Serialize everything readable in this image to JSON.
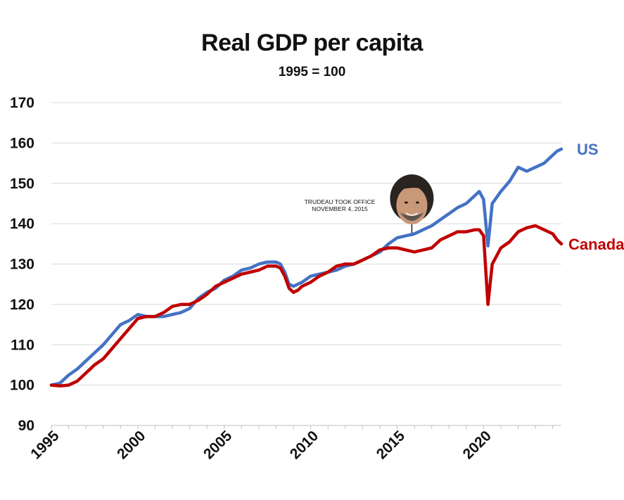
{
  "chart_data": {
    "type": "line",
    "title": "Real GDP per capita",
    "subtitle": "1995 = 100",
    "ylim": [
      90,
      170
    ],
    "yticks": [
      90,
      100,
      110,
      120,
      130,
      140,
      150,
      160,
      170
    ],
    "xlim": [
      1995,
      2024.5
    ],
    "xticks": [
      "1995",
      "2000",
      "2005",
      "2010",
      "2015",
      "2020"
    ],
    "grid": true,
    "series": [
      {
        "name": "US",
        "color": "#4472C4",
        "x": [
          1995,
          1995.5,
          1996,
          1996.5,
          1997,
          1997.5,
          1998,
          1998.5,
          1999,
          1999.5,
          2000,
          2000.5,
          2001,
          2001.5,
          2002,
          2002.5,
          2003,
          2003.5,
          2004,
          2004.5,
          2005,
          2005.5,
          2006,
          2006.5,
          2007,
          2007.5,
          2008,
          2008.25,
          2008.5,
          2008.75,
          2009,
          2009.25,
          2009.5,
          2010,
          2010.5,
          2011,
          2011.5,
          2012,
          2012.5,
          2013,
          2013.5,
          2014,
          2014.5,
          2015,
          2015.5,
          2016,
          2016.5,
          2017,
          2017.5,
          2018,
          2018.5,
          2019,
          2019.5,
          2019.75,
          2020,
          2020.25,
          2020.5,
          2021,
          2021.5,
          2022,
          2022.5,
          2023,
          2023.5,
          2024,
          2024.25,
          2024.5
        ],
        "values": [
          100,
          100.5,
          102.5,
          104,
          106,
          108,
          110,
          112.5,
          115,
          116,
          117.5,
          117,
          117,
          117,
          117.5,
          118,
          119,
          121.5,
          123,
          124,
          126,
          127,
          128.5,
          129,
          130,
          130.5,
          130.5,
          130,
          128,
          125,
          124.5,
          125,
          125.5,
          127,
          127.5,
          128,
          128.5,
          129.5,
          130,
          131,
          132,
          133,
          135,
          136.5,
          137,
          137.5,
          138.5,
          139.5,
          141,
          142.5,
          144,
          145,
          147,
          148,
          146,
          134.5,
          145,
          148,
          150.5,
          154,
          153,
          154,
          155,
          157,
          158,
          158.5
        ]
      },
      {
        "name": "Canada",
        "color": "#C00000",
        "x": [
          1995,
          1995.5,
          1996,
          1996.5,
          1997,
          1997.5,
          1998,
          1998.5,
          1999,
          1999.5,
          2000,
          2000.5,
          2001,
          2001.5,
          2002,
          2002.5,
          2003,
          2003.5,
          2004,
          2004.5,
          2005,
          2005.5,
          2006,
          2006.5,
          2007,
          2007.5,
          2008,
          2008.25,
          2008.5,
          2008.75,
          2009,
          2009.25,
          2009.5,
          2010,
          2010.5,
          2011,
          2011.5,
          2012,
          2012.5,
          2013,
          2013.5,
          2014,
          2014.5,
          2015,
          2015.5,
          2016,
          2016.5,
          2017,
          2017.5,
          2018,
          2018.5,
          2019,
          2019.5,
          2019.75,
          2020,
          2020.25,
          2020.5,
          2021,
          2021.5,
          2022,
          2022.5,
          2023,
          2023.5,
          2024,
          2024.25,
          2024.5
        ],
        "values": [
          100,
          99.8,
          100,
          101,
          103,
          105,
          106.5,
          109,
          111.5,
          114,
          116.5,
          117,
          117,
          118,
          119.5,
          120,
          120,
          121,
          122.5,
          124.5,
          125.5,
          126.5,
          127.5,
          128,
          128.5,
          129.5,
          129.5,
          129,
          127,
          124,
          123,
          123.5,
          124.5,
          125.5,
          127,
          128,
          129.5,
          130,
          130,
          131,
          132,
          133.5,
          134,
          134,
          133.5,
          133,
          133.5,
          134,
          136,
          137,
          138,
          138,
          138.5,
          138.5,
          137,
          120,
          130,
          134,
          135.5,
          138,
          139,
          139.5,
          138.5,
          137.5,
          136,
          135
        ]
      }
    ],
    "annotation": {
      "line1": "TRUDEAU TOOK OFFICE",
      "line2": "NOVEMBER 4, 2015",
      "x": 2015.85
    }
  }
}
